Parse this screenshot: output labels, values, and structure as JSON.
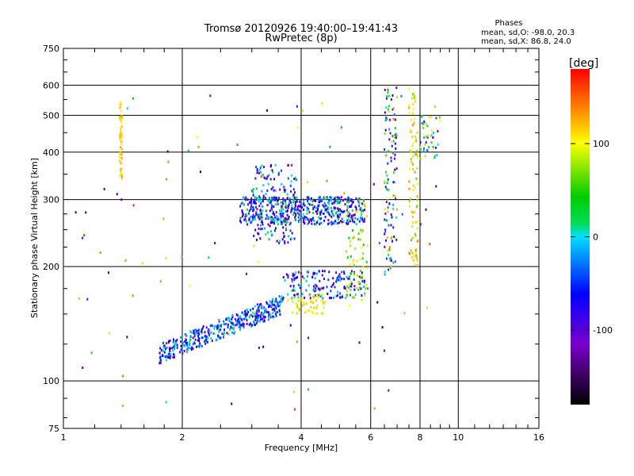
{
  "chart_data": {
    "type": "scatter",
    "title": "Tromsø 20120926 19:40:00–19:41:43",
    "subtitle": "RwPretec (8p)",
    "xlabel": "Frequency [MHz]",
    "ylabel": "Stationary phase Virtual Height [km]",
    "x_scale": "log",
    "y_scale": "log",
    "xlim": [
      1,
      16
    ],
    "ylim": [
      75,
      750
    ],
    "x_ticks": [
      1,
      2,
      4,
      6,
      8,
      10,
      16
    ],
    "y_ticks": [
      75,
      100,
      200,
      300,
      400,
      500,
      600,
      750
    ],
    "grid": true,
    "stats": {
      "title": "Phases",
      "line0": "mean, sd,O:  -98.0, 20.3",
      "line1": "mean, sd,X:  86.8, 24.0"
    },
    "colorbar": {
      "label": "[deg]",
      "min": -180,
      "max": 180,
      "ticks": [
        100,
        0,
        -100
      ],
      "colormap": "rainbow"
    },
    "point_groups": [
      {
        "name": "O-trace lower",
        "freq": [
          1.75,
          3.6
        ],
        "height": [
          118,
          168
        ],
        "phase": [
          -110,
          20
        ],
        "n": 420
      },
      {
        "name": "O-trace mid",
        "freq": [
          3.6,
          5.8
        ],
        "height": [
          165,
          195
        ],
        "phase": [
          -130,
          20
        ],
        "n": 160
      },
      {
        "name": "O-trace upper",
        "freq": [
          2.8,
          5.8
        ],
        "height": [
          258,
          305
        ],
        "phase": [
          -140,
          25
        ],
        "n": 480
      },
      {
        "name": "cluster 3.3-3.9 MHz",
        "freq": [
          3.0,
          3.9
        ],
        "height": [
          230,
          370
        ],
        "phase": [
          -150,
          30
        ],
        "n": 180
      },
      {
        "name": "X-trace upper",
        "freq": [
          5.2,
          5.9
        ],
        "height": [
          165,
          300
        ],
        "phase": [
          40,
          130
        ],
        "n": 70
      },
      {
        "name": "X-trace lower",
        "freq": [
          3.7,
          4.6
        ],
        "height": [
          150,
          170
        ],
        "phase": [
          80,
          120
        ],
        "n": 60
      },
      {
        "name": "band 6.5-7.0 MHz",
        "freq": [
          6.5,
          7.0
        ],
        "height": [
          190,
          600
        ],
        "phase": [
          -150,
          140
        ],
        "n": 120
      },
      {
        "name": "band 7.5-7.8 MHz",
        "freq": [
          7.5,
          7.9
        ],
        "height": [
          200,
          620
        ],
        "phase": [
          60,
          140
        ],
        "n": 90
      },
      {
        "name": "band 8.5-9.0 MHz",
        "freq": [
          8.0,
          9.0
        ],
        "height": [
          380,
          500
        ],
        "phase": [
          -100,
          130
        ],
        "n": 40
      },
      {
        "name": "column 1.4 MHz",
        "freq": [
          1.39,
          1.41
        ],
        "height": [
          340,
          550
        ],
        "phase": [
          100,
          130
        ],
        "n": 50
      },
      {
        "name": "scattered",
        "freq": [
          1.05,
          9.0
        ],
        "height": [
          80,
          650
        ],
        "phase": [
          -160,
          170
        ],
        "n": 90
      }
    ]
  }
}
